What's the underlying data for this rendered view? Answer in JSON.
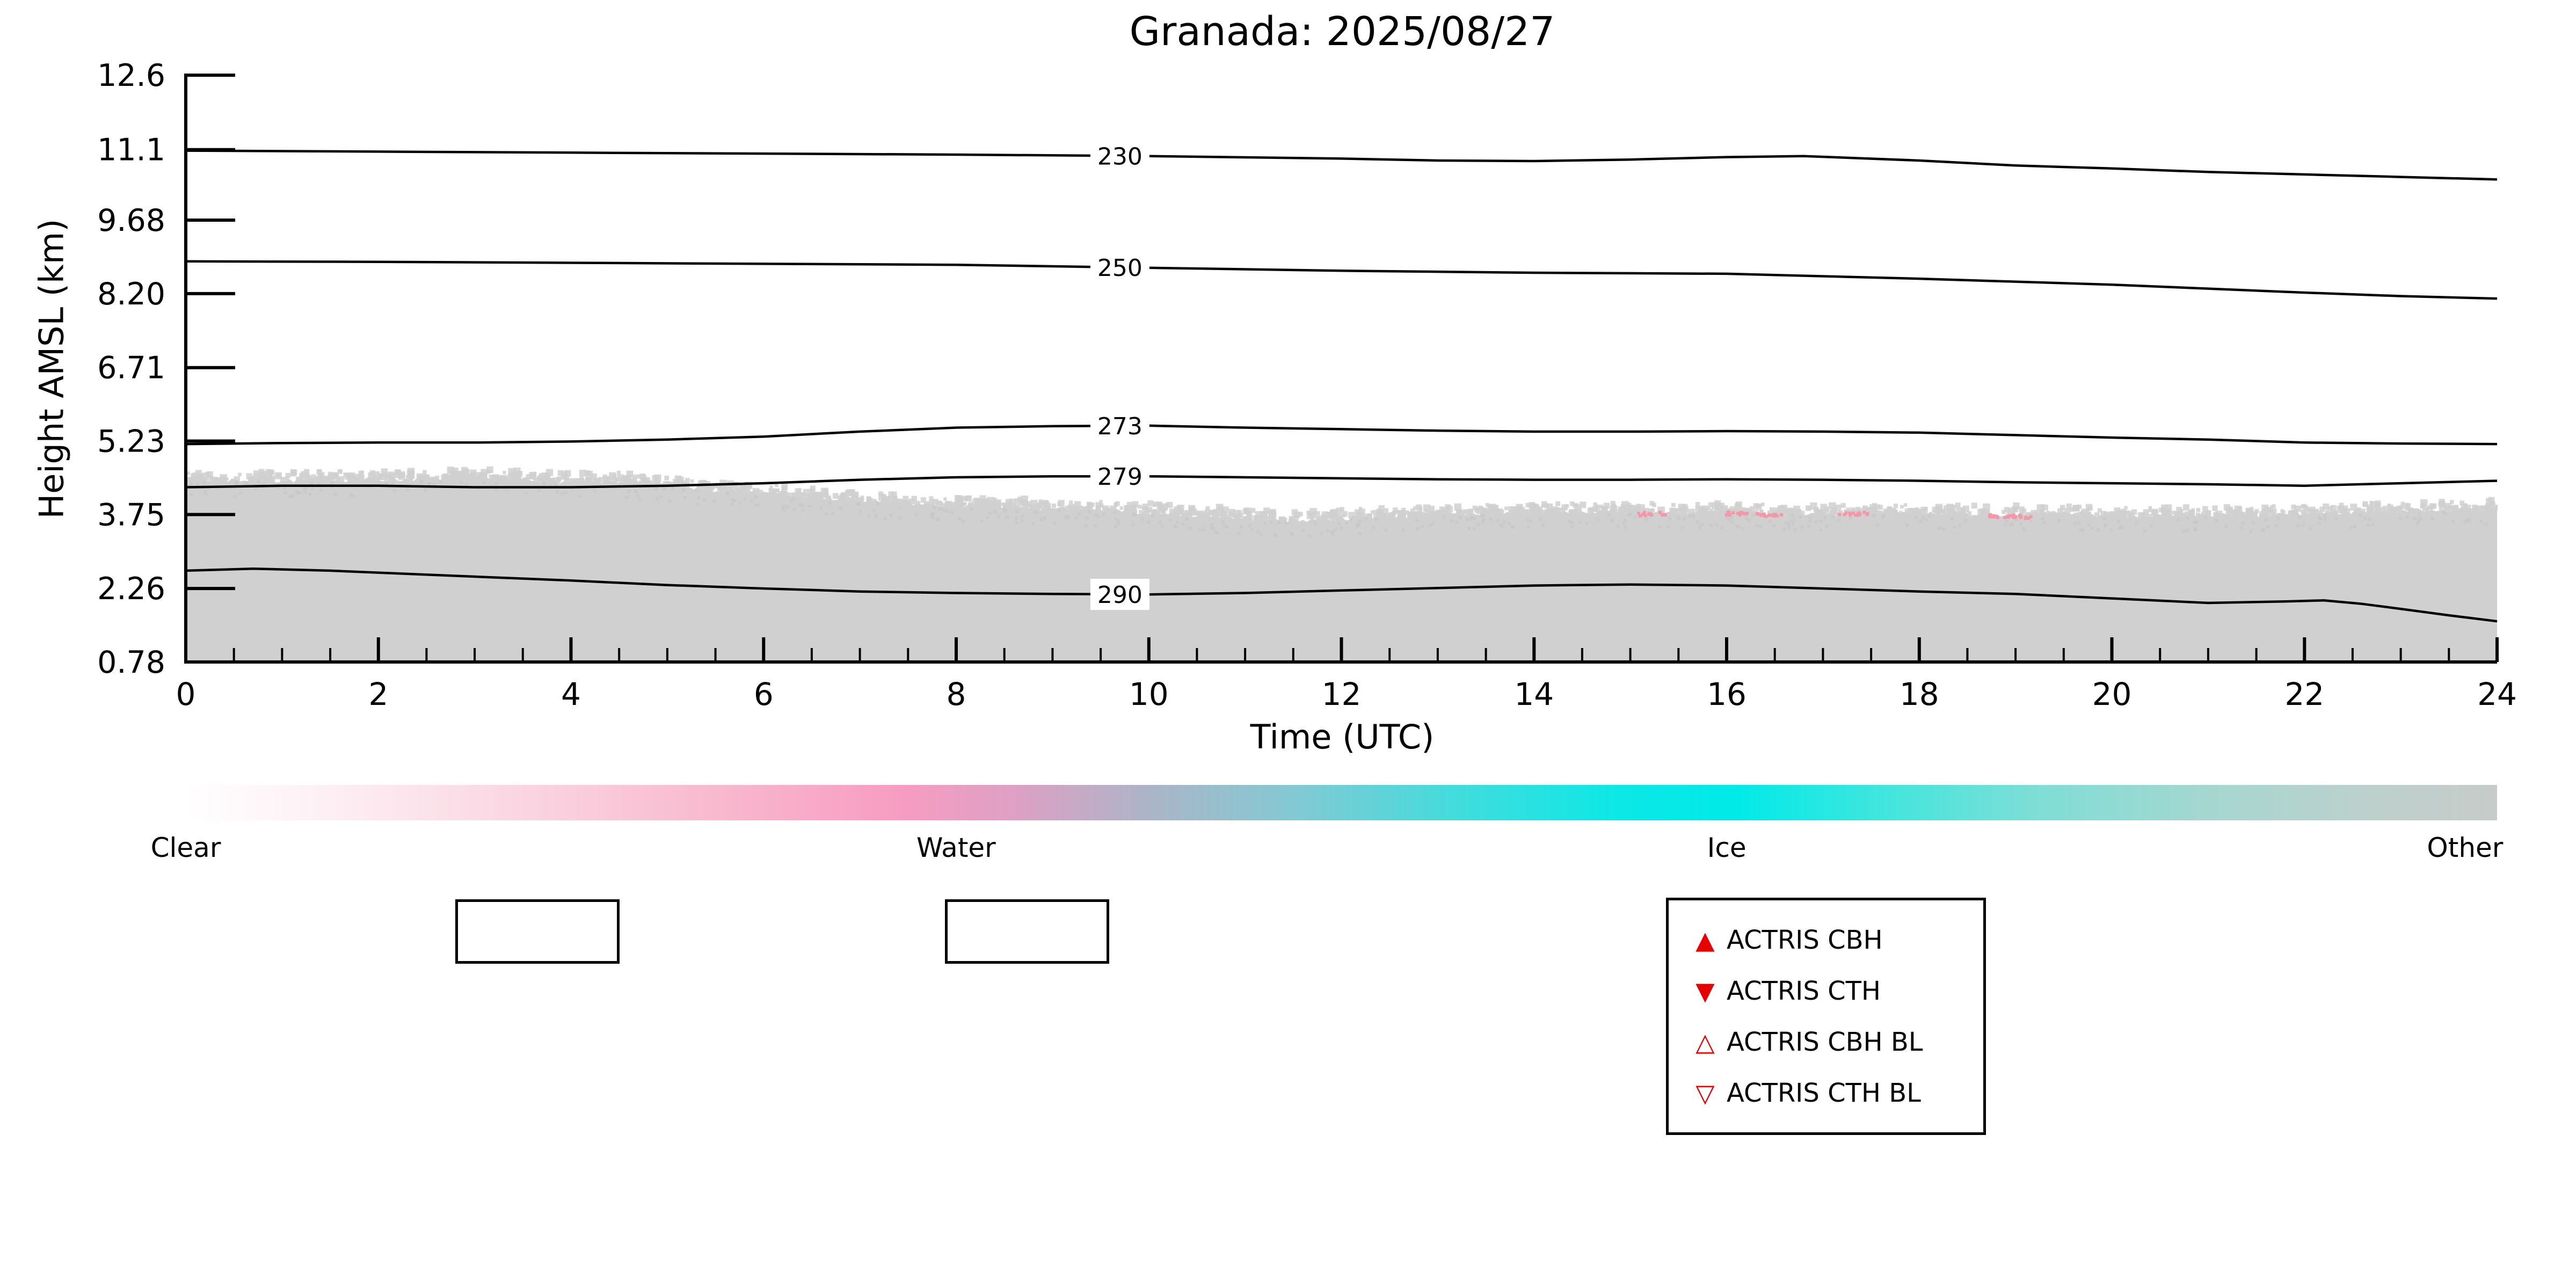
{
  "chart_data": {
    "type": "heatmap",
    "subtype": "target-classification-time-height",
    "title": "Granada: 2025/08/27",
    "xlabel": "Time (UTC)",
    "ylabel": "Height AMSL (km)",
    "xlim": [
      0,
      24
    ],
    "ylim": [
      0.78,
      12.6
    ],
    "grid": false,
    "xticks": {
      "labels": [
        "0",
        "2",
        "4",
        "6",
        "8",
        "10",
        "12",
        "14",
        "16",
        "18",
        "20",
        "22",
        "24"
      ],
      "minor_step": 0.5
    },
    "yticks": {
      "labels": [
        "0.78",
        "2.26",
        "3.75",
        "5.23",
        "6.71",
        "8.20",
        "9.68",
        "11.1",
        "12.6"
      ]
    },
    "contours": [
      {
        "label": "230",
        "label_t": 9.7,
        "points": [
          [
            0,
            11.08
          ],
          [
            2,
            11.06
          ],
          [
            4,
            11.04
          ],
          [
            6,
            11.02
          ],
          [
            8,
            11.0
          ],
          [
            10,
            10.97
          ],
          [
            12,
            10.92
          ],
          [
            13,
            10.88
          ],
          [
            14,
            10.87
          ],
          [
            15,
            10.9
          ],
          [
            16,
            10.95
          ],
          [
            16.8,
            10.97
          ],
          [
            18,
            10.88
          ],
          [
            19,
            10.78
          ],
          [
            20,
            10.72
          ],
          [
            21,
            10.65
          ],
          [
            22,
            10.6
          ],
          [
            23,
            10.55
          ],
          [
            24,
            10.5
          ]
        ]
      },
      {
        "label": "250",
        "label_t": 9.7,
        "points": [
          [
            0,
            8.85
          ],
          [
            2,
            8.84
          ],
          [
            4,
            8.82
          ],
          [
            6,
            8.8
          ],
          [
            8,
            8.78
          ],
          [
            10,
            8.72
          ],
          [
            12,
            8.66
          ],
          [
            14,
            8.62
          ],
          [
            16,
            8.6
          ],
          [
            18,
            8.5
          ],
          [
            20,
            8.38
          ],
          [
            21,
            8.3
          ],
          [
            22,
            8.22
          ],
          [
            23,
            8.15
          ],
          [
            24,
            8.1
          ]
        ]
      },
      {
        "label": "273",
        "label_t": 9.7,
        "points": [
          [
            0,
            5.17
          ],
          [
            1,
            5.19
          ],
          [
            2,
            5.2
          ],
          [
            3,
            5.2
          ],
          [
            4,
            5.22
          ],
          [
            5,
            5.26
          ],
          [
            6,
            5.32
          ],
          [
            7,
            5.42
          ],
          [
            8,
            5.5
          ],
          [
            9,
            5.53
          ],
          [
            10,
            5.54
          ],
          [
            11,
            5.5
          ],
          [
            12,
            5.47
          ],
          [
            13,
            5.44
          ],
          [
            14,
            5.42
          ],
          [
            15,
            5.42
          ],
          [
            16,
            5.43
          ],
          [
            17,
            5.42
          ],
          [
            18,
            5.4
          ],
          [
            19,
            5.35
          ],
          [
            20,
            5.3
          ],
          [
            21,
            5.26
          ],
          [
            22,
            5.2
          ],
          [
            23,
            5.18
          ],
          [
            24,
            5.17
          ]
        ]
      },
      {
        "label": "279",
        "label_t": 9.7,
        "points": [
          [
            0,
            4.3
          ],
          [
            1,
            4.33
          ],
          [
            2,
            4.33
          ],
          [
            3,
            4.3
          ],
          [
            4,
            4.3
          ],
          [
            5,
            4.33
          ],
          [
            6,
            4.38
          ],
          [
            7,
            4.45
          ],
          [
            8,
            4.5
          ],
          [
            9,
            4.52
          ],
          [
            10,
            4.52
          ],
          [
            11,
            4.5
          ],
          [
            12,
            4.48
          ],
          [
            13,
            4.46
          ],
          [
            14,
            4.45
          ],
          [
            15,
            4.45
          ],
          [
            16,
            4.46
          ],
          [
            17,
            4.45
          ],
          [
            18,
            4.43
          ],
          [
            19,
            4.4
          ],
          [
            20,
            4.38
          ],
          [
            21,
            4.36
          ],
          [
            22,
            4.33
          ],
          [
            23,
            4.38
          ],
          [
            24,
            4.43
          ]
        ]
      },
      {
        "label": "290",
        "label_t": 9.7,
        "points": [
          [
            0,
            2.62
          ],
          [
            0.7,
            2.66
          ],
          [
            1.5,
            2.62
          ],
          [
            2,
            2.58
          ],
          [
            3,
            2.5
          ],
          [
            4,
            2.42
          ],
          [
            5,
            2.33
          ],
          [
            6,
            2.26
          ],
          [
            7,
            2.2
          ],
          [
            8,
            2.17
          ],
          [
            9,
            2.15
          ],
          [
            10,
            2.14
          ],
          [
            11,
            2.17
          ],
          [
            12,
            2.22
          ],
          [
            13,
            2.27
          ],
          [
            14,
            2.32
          ],
          [
            15,
            2.34
          ],
          [
            16,
            2.32
          ],
          [
            17,
            2.26
          ],
          [
            18,
            2.2
          ],
          [
            19,
            2.15
          ],
          [
            20,
            2.06
          ],
          [
            21,
            1.97
          ],
          [
            21.8,
            2.0
          ],
          [
            22.2,
            2.02
          ],
          [
            22.6,
            1.95
          ],
          [
            23,
            1.85
          ],
          [
            23.5,
            1.72
          ],
          [
            24,
            1.6
          ]
        ]
      }
    ],
    "region": {
      "name": "aerosol-other-classification",
      "color": "#d0d0d0",
      "speckle_dark": "#c6c6c6",
      "base": 0.78,
      "top_edge": [
        [
          0,
          4.42
        ],
        [
          0.5,
          4.45
        ],
        [
          1,
          4.43
        ],
        [
          1.5,
          4.46
        ],
        [
          2,
          4.44
        ],
        [
          2.5,
          4.47
        ],
        [
          3,
          4.5
        ],
        [
          3.5,
          4.45
        ],
        [
          4,
          4.4
        ],
        [
          4.5,
          4.42
        ],
        [
          5,
          4.33
        ],
        [
          5.5,
          4.25
        ],
        [
          6,
          4.18
        ],
        [
          6.5,
          4.1
        ],
        [
          7,
          4.02
        ],
        [
          7.5,
          3.97
        ],
        [
          8,
          3.93
        ],
        [
          8.5,
          3.9
        ],
        [
          9,
          3.87
        ],
        [
          9.5,
          3.84
        ],
        [
          10,
          3.8
        ],
        [
          10.5,
          3.74
        ],
        [
          11,
          3.68
        ],
        [
          11.5,
          3.63
        ],
        [
          12,
          3.68
        ],
        [
          12.5,
          3.72
        ],
        [
          13,
          3.75
        ],
        [
          13.5,
          3.77
        ],
        [
          14,
          3.79
        ],
        [
          14.5,
          3.8
        ],
        [
          15,
          3.81
        ],
        [
          15.5,
          3.8
        ],
        [
          16,
          3.79
        ],
        [
          16.5,
          3.77
        ],
        [
          17,
          3.76
        ],
        [
          17.5,
          3.77
        ],
        [
          18,
          3.79
        ],
        [
          18.5,
          3.77
        ],
        [
          19,
          3.76
        ],
        [
          19.5,
          3.74
        ],
        [
          20,
          3.73
        ],
        [
          20.5,
          3.72
        ],
        [
          21,
          3.72
        ],
        [
          21.5,
          3.74
        ],
        [
          22,
          3.77
        ],
        [
          22.5,
          3.8
        ],
        [
          23,
          3.83
        ],
        [
          23.5,
          3.85
        ],
        [
          24,
          3.87
        ]
      ]
    },
    "water_spots": {
      "color": "#f497a8",
      "points": [
        [
          15.2,
          3.79
        ],
        [
          16.1,
          3.8
        ],
        [
          16.45,
          3.78
        ],
        [
          17.3,
          3.8
        ],
        [
          18.85,
          3.75
        ],
        [
          19.05,
          3.73
        ]
      ]
    },
    "colorbar": {
      "labels": [
        "Clear",
        "Water",
        "Ice",
        "Other"
      ],
      "positions": [
        0,
        0.3333,
        0.6667,
        1
      ],
      "stops": [
        [
          0,
          "#ffffff"
        ],
        [
          0.06,
          "#fdf0f4"
        ],
        [
          0.15,
          "#fad4e0"
        ],
        [
          0.24,
          "#f8b5cc"
        ],
        [
          0.31,
          "#f79cc2"
        ],
        [
          0.36,
          "#dda0c4"
        ],
        [
          0.42,
          "#a9b6c8"
        ],
        [
          0.48,
          "#82c9d3"
        ],
        [
          0.55,
          "#42dcdc"
        ],
        [
          0.62,
          "#0ce8e6"
        ],
        [
          0.67,
          "#00eae8"
        ],
        [
          0.73,
          "#3ce6de"
        ],
        [
          0.8,
          "#7eded6"
        ],
        [
          0.88,
          "#a8d6d0"
        ],
        [
          0.95,
          "#bed0cc"
        ],
        [
          1,
          "#c7ccca"
        ]
      ]
    }
  },
  "legend": {
    "marker_color": "#e60000",
    "entries": [
      {
        "marker_glyph": "▲",
        "label": "ACTRIS CBH"
      },
      {
        "marker_glyph": "▼",
        "label": "ACTRIS CTH"
      },
      {
        "marker_glyph": "△",
        "label": "ACTRIS CBH BL"
      },
      {
        "marker_glyph": "▽",
        "label": "ACTRIS CTH BL"
      }
    ]
  }
}
